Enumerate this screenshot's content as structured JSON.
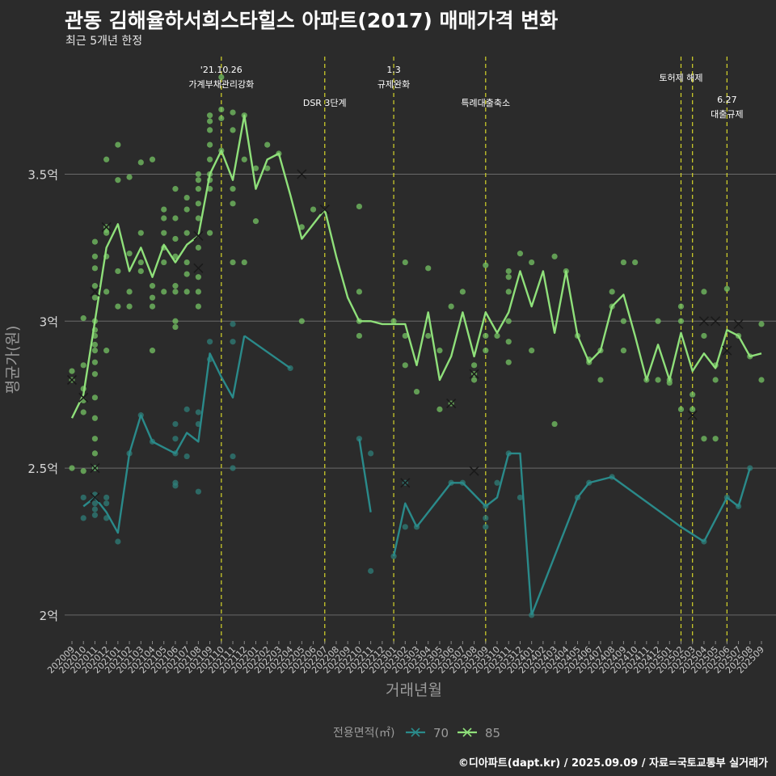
{
  "title": "관동 김해율하서희스타힐스 아파트(2017) 매매가격 변화",
  "subtitle": "최근 5개년 한정",
  "caption": "©디아파트(dapt.kr) / 2025.09.09 / 자료=국토교통부 실거래가",
  "colors": {
    "background": "#2b2b2b",
    "grid": "#6a6a6a",
    "event_line": "#d6d62a",
    "series_70": "#2a8a8a",
    "series_85": "#8fe07a",
    "point_70": "#2f7f7a",
    "point_85": "#75c464"
  },
  "chart_data": {
    "type": "line",
    "title": "관동 김해율하서희스타힐스 아파트(2017) 매매가격 변화",
    "xlabel": "거래년월",
    "ylabel": "평균가(원)",
    "ylim": [
      1.92,
      3.9
    ],
    "yticks": [
      {
        "value": 2.0,
        "label": "2억"
      },
      {
        "value": 2.5,
        "label": "2.5억"
      },
      {
        "value": 3.0,
        "label": "3억"
      },
      {
        "value": 3.5,
        "label": "3.5억"
      }
    ],
    "grid": true,
    "legend_title": "전용면적(㎡)",
    "legend_position": "bottom",
    "categories": [
      "202009",
      "202010",
      "202011",
      "202012",
      "202101",
      "202102",
      "202103",
      "202104",
      "202105",
      "202106",
      "202107",
      "202108",
      "202109",
      "202110",
      "202111",
      "202112",
      "202201",
      "202202",
      "202203",
      "202204",
      "202205",
      "202206",
      "202207",
      "202208",
      "202209",
      "202210",
      "202211",
      "202212",
      "202301",
      "202302",
      "202303",
      "202304",
      "202305",
      "202306",
      "202307",
      "202308",
      "202309",
      "202310",
      "202311",
      "202312",
      "202401",
      "202402",
      "202403",
      "202404",
      "202405",
      "202406",
      "202407",
      "202408",
      "202409",
      "202410",
      "202411",
      "202412",
      "202501",
      "202502",
      "202503",
      "202504",
      "202505",
      "202506",
      "202507",
      "202508",
      "202509"
    ],
    "series": [
      {
        "name": "70",
        "color": "#2a8a8a",
        "values": [
          null,
          2.37,
          2.4,
          2.35,
          2.28,
          2.55,
          2.68,
          2.59,
          2.57,
          2.55,
          2.62,
          2.59,
          2.89,
          2.81,
          2.74,
          2.95,
          null,
          null,
          null,
          2.84,
          null,
          null,
          null,
          null,
          null,
          2.6,
          2.35,
          null,
          2.2,
          2.38,
          2.3,
          null,
          null,
          2.45,
          2.45,
          null,
          2.37,
          2.4,
          2.55,
          2.55,
          2.0,
          null,
          null,
          null,
          2.4,
          2.45,
          null,
          2.47,
          null,
          null,
          null,
          null,
          null,
          2.3,
          null,
          2.25,
          null,
          2.4,
          2.37,
          2.5,
          null
        ],
        "segments": [
          [
            1,
            15
          ],
          [
            15,
            19
          ],
          [
            25,
            26
          ],
          [
            28,
            30
          ],
          [
            30,
            36
          ],
          [
            36,
            38
          ],
          [
            38,
            40
          ],
          [
            40,
            44
          ],
          [
            44,
            47
          ],
          [
            47,
            55
          ],
          [
            55,
            59
          ]
        ],
        "markers": [
          {
            "x": "202011",
            "y": 2.5
          },
          {
            "x": "202011",
            "y": 2.4
          },
          {
            "x": "202302",
            "y": 2.45
          },
          {
            "x": "202308",
            "y": 2.49
          }
        ]
      },
      {
        "name": "85",
        "color": "#8fe07a",
        "values": [
          2.67,
          2.75,
          3.0,
          3.25,
          3.33,
          3.17,
          3.25,
          3.15,
          3.26,
          3.2,
          3.26,
          3.29,
          3.5,
          3.58,
          3.48,
          3.7,
          3.45,
          3.55,
          3.57,
          3.43,
          3.28,
          3.33,
          3.38,
          3.22,
          3.08,
          3.0,
          3.0,
          2.99,
          2.99,
          2.99,
          2.85,
          3.03,
          2.8,
          2.88,
          3.03,
          2.88,
          3.03,
          2.96,
          3.03,
          3.17,
          3.05,
          3.17,
          2.96,
          3.17,
          2.95,
          2.86,
          2.9,
          3.05,
          3.09,
          2.95,
          2.8,
          2.92,
          2.8,
          2.96,
          2.83,
          2.89,
          2.84,
          2.97,
          2.95,
          2.88,
          2.89
        ],
        "markers": [
          {
            "x": "202009",
            "y": 2.8
          },
          {
            "x": "202010",
            "y": 2.74
          },
          {
            "x": "202011",
            "y": 3.1
          },
          {
            "x": "202012",
            "y": 3.32
          },
          {
            "x": "202108",
            "y": 3.29
          },
          {
            "x": "202108",
            "y": 3.18
          },
          {
            "x": "202205",
            "y": 3.5
          },
          {
            "x": "202207",
            "y": 3.38
          },
          {
            "x": "202306",
            "y": 2.72
          },
          {
            "x": "202308",
            "y": 2.82
          },
          {
            "x": "202503",
            "y": 2.68
          },
          {
            "x": "202504",
            "y": 3.0
          },
          {
            "x": "202505",
            "y": 3.0
          },
          {
            "x": "202506",
            "y": 2.9
          },
          {
            "x": "202507",
            "y": 2.99
          }
        ]
      }
    ],
    "scatter": {
      "70": [
        [
          1,
          2.4
        ],
        [
          1,
          2.33
        ],
        [
          2,
          2.41
        ],
        [
          2,
          2.38
        ],
        [
          2,
          2.36
        ],
        [
          2,
          2.34
        ],
        [
          2,
          2.5
        ],
        [
          3,
          2.33
        ],
        [
          3,
          2.38
        ],
        [
          3,
          2.4
        ],
        [
          4,
          2.25
        ],
        [
          5,
          2.55
        ],
        [
          6,
          2.68
        ],
        [
          7,
          2.59
        ],
        [
          9,
          2.6
        ],
        [
          9,
          2.55
        ],
        [
          9,
          2.45
        ],
        [
          9,
          2.44
        ],
        [
          9,
          2.65
        ],
        [
          10,
          2.7
        ],
        [
          10,
          2.54
        ],
        [
          11,
          2.42
        ],
        [
          11,
          2.65
        ],
        [
          11,
          2.69
        ],
        [
          12,
          2.93
        ],
        [
          12,
          2.87
        ],
        [
          14,
          2.99
        ],
        [
          14,
          2.93
        ],
        [
          14,
          2.5
        ],
        [
          14,
          2.54
        ],
        [
          19,
          2.84
        ],
        [
          25,
          2.6
        ],
        [
          26,
          2.15
        ],
        [
          26,
          2.55
        ],
        [
          28,
          2.2
        ],
        [
          29,
          2.3
        ],
        [
          29,
          2.45
        ],
        [
          30,
          2.3
        ],
        [
          33,
          2.45
        ],
        [
          34,
          2.45
        ],
        [
          36,
          2.33
        ],
        [
          36,
          2.3
        ],
        [
          36,
          2.37
        ],
        [
          37,
          2.45
        ],
        [
          38,
          2.55
        ],
        [
          39,
          2.4
        ],
        [
          40,
          2.0
        ],
        [
          44,
          2.4
        ],
        [
          45,
          2.45
        ],
        [
          47,
          2.47
        ],
        [
          55,
          2.25
        ],
        [
          57,
          2.4
        ],
        [
          58,
          2.37
        ],
        [
          59,
          2.5
        ]
      ],
      "85": [
        [
          0,
          2.5
        ],
        [
          0,
          2.83
        ],
        [
          0,
          2.8
        ],
        [
          1,
          2.73
        ],
        [
          1,
          2.77
        ],
        [
          1,
          2.49
        ],
        [
          1,
          2.69
        ],
        [
          1,
          3.01
        ],
        [
          1,
          2.85
        ],
        [
          2,
          2.5
        ],
        [
          2,
          2.55
        ],
        [
          2,
          2.6
        ],
        [
          2,
          2.67
        ],
        [
          2,
          2.74
        ],
        [
          2,
          2.82
        ],
        [
          2,
          2.9
        ],
        [
          2,
          2.95
        ],
        [
          2,
          3.0
        ],
        [
          2,
          3.08
        ],
        [
          2,
          3.12
        ],
        [
          2,
          3.18
        ],
        [
          2,
          3.22
        ],
        [
          2,
          3.27
        ],
        [
          2,
          2.86
        ],
        [
          2,
          2.92
        ],
        [
          2,
          2.97
        ],
        [
          3,
          3.55
        ],
        [
          3,
          3.32
        ],
        [
          3,
          3.31
        ],
        [
          3,
          3.3
        ],
        [
          3,
          3.22
        ],
        [
          3,
          3.1
        ],
        [
          3,
          2.9
        ],
        [
          4,
          3.6
        ],
        [
          4,
          3.48
        ],
        [
          4,
          3.05
        ],
        [
          4,
          3.17
        ],
        [
          5,
          3.49
        ],
        [
          5,
          3.23
        ],
        [
          5,
          3.1
        ],
        [
          5,
          3.05
        ],
        [
          6,
          3.54
        ],
        [
          6,
          3.3
        ],
        [
          6,
          3.2
        ],
        [
          6,
          3.17
        ],
        [
          7,
          3.55
        ],
        [
          7,
          3.12
        ],
        [
          7,
          3.08
        ],
        [
          7,
          3.05
        ],
        [
          7,
          2.9
        ],
        [
          8,
          3.38
        ],
        [
          8,
          3.35
        ],
        [
          8,
          3.3
        ],
        [
          8,
          3.25
        ],
        [
          8,
          3.2
        ],
        [
          8,
          3.1
        ],
        [
          9,
          3.45
        ],
        [
          9,
          3.35
        ],
        [
          9,
          3.28
        ],
        [
          9,
          3.22
        ],
        [
          9,
          3.1
        ],
        [
          9,
          3.0
        ],
        [
          9,
          2.98
        ],
        [
          9,
          3.12
        ],
        [
          10,
          3.42
        ],
        [
          10,
          3.38
        ],
        [
          10,
          3.3
        ],
        [
          10,
          3.2
        ],
        [
          10,
          3.16
        ],
        [
          10,
          3.1
        ],
        [
          11,
          3.5
        ],
        [
          11,
          3.48
        ],
        [
          11,
          3.45
        ],
        [
          11,
          3.4
        ],
        [
          11,
          3.35
        ],
        [
          11,
          3.25
        ],
        [
          11,
          3.1
        ],
        [
          11,
          3.05
        ],
        [
          11,
          3.15
        ],
        [
          12,
          3.7
        ],
        [
          12,
          3.68
        ],
        [
          12,
          3.65
        ],
        [
          12,
          3.6
        ],
        [
          12,
          3.55
        ],
        [
          12,
          3.5
        ],
        [
          12,
          3.48
        ],
        [
          12,
          3.45
        ],
        [
          12,
          3.3
        ],
        [
          13,
          3.72
        ],
        [
          13,
          3.69
        ],
        [
          13,
          3.83
        ],
        [
          13,
          3.58
        ],
        [
          14,
          3.71
        ],
        [
          14,
          3.65
        ],
        [
          14,
          3.45
        ],
        [
          14,
          3.4
        ],
        [
          14,
          3.2
        ],
        [
          15,
          3.7
        ],
        [
          15,
          3.55
        ],
        [
          15,
          3.2
        ],
        [
          16,
          3.52
        ],
        [
          16,
          3.34
        ],
        [
          17,
          3.6
        ],
        [
          17,
          3.52
        ],
        [
          18,
          3.57
        ],
        [
          20,
          3.32
        ],
        [
          20,
          3.0
        ],
        [
          21,
          3.38
        ],
        [
          25,
          3.39
        ],
        [
          25,
          3.1
        ],
        [
          25,
          3.0
        ],
        [
          25,
          2.95
        ],
        [
          28,
          3.0
        ],
        [
          29,
          3.2
        ],
        [
          29,
          2.95
        ],
        [
          29,
          2.85
        ],
        [
          30,
          2.76
        ],
        [
          31,
          3.18
        ],
        [
          31,
          2.95
        ],
        [
          32,
          2.9
        ],
        [
          32,
          2.7
        ],
        [
          33,
          2.72
        ],
        [
          33,
          3.05
        ],
        [
          34,
          3.1
        ],
        [
          35,
          2.85
        ],
        [
          35,
          2.82
        ],
        [
          35,
          2.8
        ],
        [
          36,
          3.19
        ],
        [
          36,
          2.95
        ],
        [
          36,
          2.9
        ],
        [
          37,
          2.95
        ],
        [
          38,
          3.17
        ],
        [
          38,
          3.15
        ],
        [
          38,
          3.1
        ],
        [
          38,
          3.0
        ],
        [
          38,
          2.93
        ],
        [
          38,
          2.86
        ],
        [
          39,
          3.23
        ],
        [
          40,
          3.2
        ],
        [
          40,
          2.9
        ],
        [
          42,
          3.22
        ],
        [
          42,
          2.65
        ],
        [
          43,
          3.17
        ],
        [
          44,
          2.95
        ],
        [
          45,
          2.87
        ],
        [
          45,
          2.86
        ],
        [
          46,
          2.9
        ],
        [
          46,
          2.8
        ],
        [
          47,
          3.1
        ],
        [
          47,
          3.05
        ],
        [
          48,
          3.2
        ],
        [
          48,
          3.0
        ],
        [
          48,
          2.9
        ],
        [
          49,
          3.2
        ],
        [
          50,
          2.8
        ],
        [
          51,
          2.8
        ],
        [
          51,
          3.0
        ],
        [
          52,
          2.8
        ],
        [
          52,
          2.79
        ],
        [
          53,
          3.05
        ],
        [
          53,
          3.0
        ],
        [
          53,
          2.7
        ],
        [
          54,
          2.75
        ],
        [
          54,
          2.7
        ],
        [
          55,
          3.1
        ],
        [
          55,
          2.95
        ],
        [
          55,
          2.6
        ],
        [
          56,
          2.85
        ],
        [
          56,
          2.8
        ],
        [
          56,
          2.6
        ],
        [
          57,
          3.11
        ],
        [
          58,
          2.95
        ],
        [
          59,
          2.88
        ],
        [
          60,
          2.99
        ],
        [
          60,
          2.8
        ]
      ]
    },
    "events": [
      {
        "x": "202110",
        "label": [
          "'21.10.26",
          "가계부채관리강화"
        ],
        "row": 0
      },
      {
        "x": "202207",
        "label": [
          "DSR 3단계"
        ],
        "row": 1
      },
      {
        "x": "202301",
        "label": [
          "1.3",
          "규제완화"
        ],
        "row": 0
      },
      {
        "x": "202309",
        "label": [
          "특례대출축소"
        ],
        "row": 1
      },
      {
        "x": "202502",
        "label": [
          "토허제 해제"
        ],
        "row": 0
      },
      {
        "x": "202503",
        "label": [],
        "row": 0
      },
      {
        "x": "202506",
        "label": [
          "6.27",
          "대출규제"
        ],
        "row": 1
      }
    ]
  }
}
